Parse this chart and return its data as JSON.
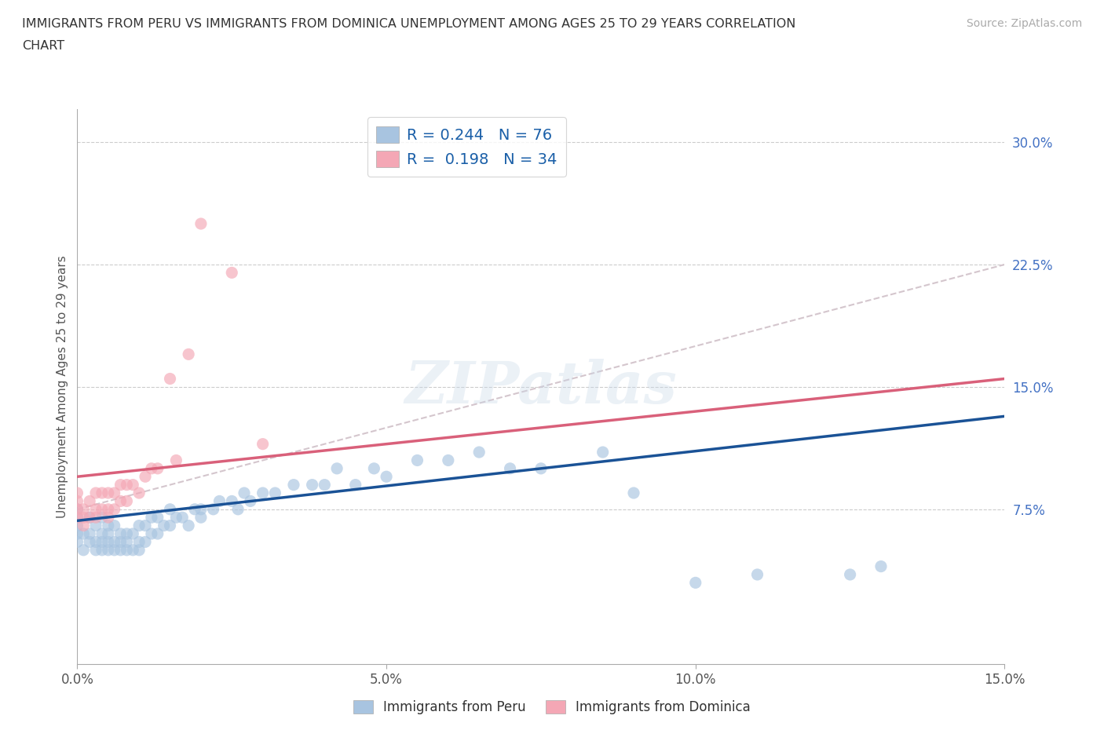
{
  "title_line1": "IMMIGRANTS FROM PERU VS IMMIGRANTS FROM DOMINICA UNEMPLOYMENT AMONG AGES 25 TO 29 YEARS CORRELATION",
  "title_line2": "CHART",
  "source": "Source: ZipAtlas.com",
  "ylabel": "Unemployment Among Ages 25 to 29 years",
  "xlim": [
    0.0,
    0.15
  ],
  "ylim": [
    -0.02,
    0.32
  ],
  "yticks_right": [
    0.075,
    0.15,
    0.225,
    0.3
  ],
  "ytick_labels_right": [
    "7.5%",
    "15.0%",
    "22.5%",
    "30.0%"
  ],
  "xticks": [
    0.0,
    0.05,
    0.1,
    0.15
  ],
  "xtick_labels": [
    "0.0%",
    "5.0%",
    "10.0%",
    "15.0%"
  ],
  "peru_color": "#a8c4e0",
  "dominica_color": "#f4a7b5",
  "peru_line_color": "#1a5296",
  "dominica_line_color": "#d9607a",
  "dash_line_color": "#d0c0c8",
  "R_peru": 0.244,
  "N_peru": 76,
  "R_dominica": 0.198,
  "N_dominica": 34,
  "legend_label_peru": "Immigrants from Peru",
  "legend_label_dominica": "Immigrants from Dominica",
  "watermark": "ZIPatlas",
  "background_color": "#ffffff",
  "peru_scatter_x": [
    0.0,
    0.0,
    0.0,
    0.0,
    0.0,
    0.001,
    0.001,
    0.002,
    0.002,
    0.002,
    0.003,
    0.003,
    0.003,
    0.004,
    0.004,
    0.004,
    0.004,
    0.005,
    0.005,
    0.005,
    0.005,
    0.006,
    0.006,
    0.006,
    0.007,
    0.007,
    0.007,
    0.008,
    0.008,
    0.008,
    0.009,
    0.009,
    0.01,
    0.01,
    0.01,
    0.011,
    0.011,
    0.012,
    0.012,
    0.013,
    0.013,
    0.014,
    0.015,
    0.015,
    0.016,
    0.017,
    0.018,
    0.019,
    0.02,
    0.02,
    0.022,
    0.023,
    0.025,
    0.026,
    0.027,
    0.028,
    0.03,
    0.032,
    0.035,
    0.038,
    0.04,
    0.042,
    0.045,
    0.048,
    0.05,
    0.055,
    0.06,
    0.065,
    0.07,
    0.075,
    0.085,
    0.09,
    0.1,
    0.11,
    0.125,
    0.13
  ],
  "peru_scatter_y": [
    0.055,
    0.06,
    0.065,
    0.07,
    0.075,
    0.05,
    0.06,
    0.055,
    0.06,
    0.07,
    0.05,
    0.055,
    0.065,
    0.05,
    0.055,
    0.06,
    0.07,
    0.05,
    0.055,
    0.06,
    0.065,
    0.05,
    0.055,
    0.065,
    0.05,
    0.055,
    0.06,
    0.05,
    0.055,
    0.06,
    0.05,
    0.06,
    0.05,
    0.055,
    0.065,
    0.055,
    0.065,
    0.06,
    0.07,
    0.06,
    0.07,
    0.065,
    0.065,
    0.075,
    0.07,
    0.07,
    0.065,
    0.075,
    0.07,
    0.075,
    0.075,
    0.08,
    0.08,
    0.075,
    0.085,
    0.08,
    0.085,
    0.085,
    0.09,
    0.09,
    0.09,
    0.1,
    0.09,
    0.1,
    0.095,
    0.105,
    0.105,
    0.11,
    0.1,
    0.1,
    0.11,
    0.085,
    0.03,
    0.035,
    0.035,
    0.04
  ],
  "dominica_scatter_x": [
    0.0,
    0.0,
    0.0,
    0.0,
    0.001,
    0.001,
    0.001,
    0.002,
    0.002,
    0.003,
    0.003,
    0.003,
    0.004,
    0.004,
    0.005,
    0.005,
    0.005,
    0.006,
    0.006,
    0.007,
    0.007,
    0.008,
    0.008,
    0.009,
    0.01,
    0.011,
    0.012,
    0.013,
    0.015,
    0.016,
    0.018,
    0.02,
    0.025,
    0.03
  ],
  "dominica_scatter_y": [
    0.07,
    0.075,
    0.08,
    0.085,
    0.065,
    0.07,
    0.075,
    0.07,
    0.08,
    0.07,
    0.075,
    0.085,
    0.075,
    0.085,
    0.07,
    0.075,
    0.085,
    0.075,
    0.085,
    0.08,
    0.09,
    0.08,
    0.09,
    0.09,
    0.085,
    0.095,
    0.1,
    0.1,
    0.155,
    0.105,
    0.17,
    0.25,
    0.22,
    0.115
  ],
  "peru_trend": [
    0.068,
    0.132
  ],
  "dominica_trend": [
    0.095,
    0.155
  ],
  "dash_trend": [
    0.075,
    0.225
  ]
}
